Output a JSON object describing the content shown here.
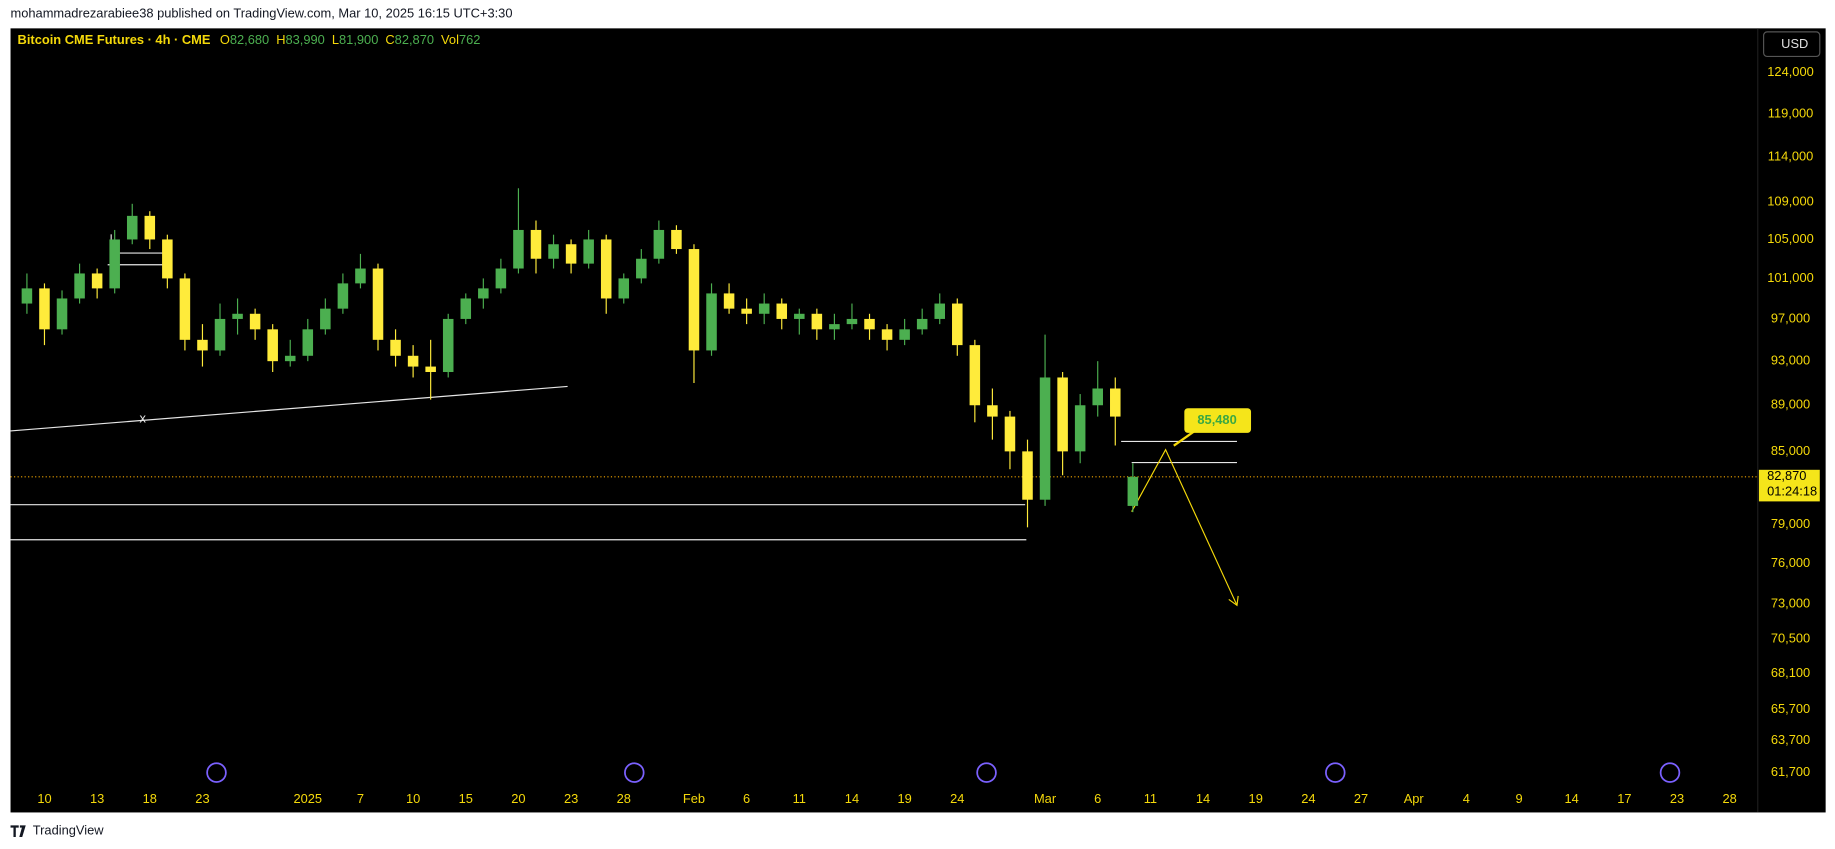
{
  "header": {
    "published": "mohammadrezarabiee38 published on TradingView.com, Mar 10, 2025 16:15 UTC+3:30"
  },
  "footer": {
    "brand": "TradingView"
  },
  "chart_data": {
    "type": "candlestick",
    "title": "Bitcoin CME Futures · 4h · CME",
    "ohlc_legend": [
      {
        "key": "O",
        "value": "82,680"
      },
      {
        "key": "H",
        "value": "83,990"
      },
      {
        "key": "L",
        "value": "81,900"
      },
      {
        "key": "C",
        "value": "82,870"
      },
      {
        "key": "Vol",
        "value": "762"
      }
    ],
    "currency": "USD",
    "log_scale": true,
    "grid": false,
    "up_color": "#4caf50",
    "down_color": "#ffeb3b",
    "categories": [
      null,
      "10",
      null,
      null,
      "13",
      null,
      null,
      "18",
      null,
      null,
      "23",
      null,
      null,
      null,
      null,
      null,
      "2025",
      null,
      null,
      "7",
      null,
      null,
      "10",
      null,
      null,
      "15",
      null,
      null,
      "20",
      null,
      null,
      "23",
      null,
      null,
      "28",
      null,
      null,
      null,
      "Feb",
      null,
      null,
      "6",
      null,
      null,
      "11",
      null,
      null,
      "14",
      null,
      null,
      "19",
      null,
      null,
      "24",
      null,
      null,
      null,
      null,
      "Mar",
      null,
      null,
      "6",
      null,
      null,
      "11",
      null,
      null,
      "14",
      null,
      null,
      "19",
      null,
      null,
      "24",
      null,
      null,
      "27",
      null,
      null,
      "Apr",
      null,
      null,
      "4",
      null,
      null,
      "9",
      null,
      null,
      "14",
      null,
      null,
      "17",
      null,
      null,
      "23",
      null,
      null,
      "28"
    ],
    "open": [
      98500,
      100000,
      96000,
      99000,
      101500,
      100000,
      105000,
      107500,
      105000,
      101000,
      95000,
      94000,
      97000,
      97500,
      96000,
      93000,
      93500,
      96000,
      98000,
      100500,
      102000,
      95000,
      93500,
      92500,
      92000,
      97000,
      99000,
      100000,
      102000,
      106000,
      103000,
      104500,
      102500,
      105000,
      99000,
      101000,
      103000,
      106000,
      104000,
      94000,
      99500,
      98000,
      97500,
      98500,
      97000,
      97500,
      96000,
      96500,
      97000,
      96000,
      95000,
      96000,
      97000,
      98500,
      94500,
      89000,
      88000,
      85000,
      81000,
      91500,
      85000,
      89000,
      90500,
      80500,
      null,
      null,
      null,
      null,
      null,
      null,
      null,
      null,
      null,
      null,
      null,
      null,
      null,
      null,
      null,
      null,
      null,
      null,
      null,
      null,
      null,
      null,
      null,
      null,
      null,
      null,
      null,
      null,
      null,
      null,
      null,
      null,
      null,
      null
    ],
    "high": [
      101500,
      100500,
      99800,
      102500,
      102000,
      106000,
      108800,
      108000,
      105500,
      101500,
      96500,
      98500,
      99000,
      98000,
      96500,
      95000,
      97000,
      99000,
      101500,
      103500,
      102500,
      96000,
      94500,
      95000,
      97500,
      99500,
      101000,
      103000,
      110500,
      107000,
      105500,
      105000,
      106000,
      105500,
      101500,
      104000,
      107000,
      106500,
      104500,
      100500,
      100500,
      99000,
      99500,
      99000,
      98000,
      98000,
      97500,
      98500,
      97500,
      96500,
      97000,
      98000,
      99500,
      99000,
      95000,
      90500,
      88500,
      86000,
      95500,
      92000,
      90000,
      93000,
      91500,
      84000,
      null,
      null,
      null,
      null,
      null,
      null,
      null,
      null,
      null,
      null,
      null,
      null,
      null,
      null,
      null,
      null,
      null,
      null,
      null,
      null,
      null,
      null,
      null,
      null,
      null,
      null,
      null,
      null,
      null,
      null,
      null,
      null,
      null,
      null
    ],
    "low": [
      97500,
      94500,
      95500,
      98500,
      99000,
      99500,
      104500,
      104000,
      100000,
      94000,
      92500,
      93500,
      95500,
      95000,
      92000,
      92500,
      93000,
      95500,
      97500,
      100000,
      94000,
      92500,
      91500,
      89500,
      91500,
      96500,
      98000,
      99500,
      101500,
      101500,
      102000,
      101500,
      102000,
      97500,
      98500,
      100500,
      102500,
      103500,
      91000,
      93500,
      97500,
      96500,
      96500,
      96000,
      95500,
      95000,
      95000,
      96000,
      95000,
      94000,
      94500,
      95500,
      96500,
      93500,
      87500,
      86000,
      83500,
      78800,
      80500,
      83000,
      84000,
      88000,
      85500,
      80000,
      null,
      null,
      null,
      null,
      null,
      null,
      null,
      null,
      null,
      null,
      null,
      null,
      null,
      null,
      null,
      null,
      null,
      null,
      null,
      null,
      null,
      null,
      null,
      null,
      null,
      null,
      null,
      null,
      null,
      null,
      null,
      null,
      null,
      null
    ],
    "close": [
      100000,
      96000,
      99000,
      101500,
      100000,
      105000,
      107500,
      105000,
      101000,
      95000,
      94000,
      97000,
      97500,
      96000,
      93000,
      93500,
      96000,
      98000,
      100500,
      102000,
      95000,
      93500,
      92500,
      92000,
      97000,
      99000,
      100000,
      102000,
      106000,
      103000,
      104500,
      102500,
      105000,
      99000,
      101000,
      103000,
      106000,
      104000,
      94000,
      99500,
      98000,
      97500,
      98500,
      97000,
      97500,
      96000,
      96500,
      97000,
      96000,
      95000,
      96000,
      97000,
      98500,
      94500,
      89000,
      88000,
      85000,
      81000,
      91500,
      85000,
      89000,
      90500,
      88000,
      82870,
      null,
      null,
      null,
      null,
      null,
      null,
      null,
      null,
      null,
      null,
      null,
      null,
      null,
      null,
      null,
      null,
      null,
      null,
      null,
      null,
      null,
      null,
      null,
      null,
      null,
      null,
      null,
      null,
      null,
      null,
      null,
      null,
      null,
      null
    ],
    "ylim": [
      59300,
      129600
    ],
    "yticks": [
      {
        "value": 124000,
        "label": "124,000"
      },
      {
        "value": 119000,
        "label": "119,000"
      },
      {
        "value": 114000,
        "label": "114,000"
      },
      {
        "value": 109000,
        "label": "109,000"
      },
      {
        "value": 105000,
        "label": "105,000"
      },
      {
        "value": 101000,
        "label": "101,000"
      },
      {
        "value": 97000,
        "label": "97,000"
      },
      {
        "value": 93000,
        "label": "93,000"
      },
      {
        "value": 89000,
        "label": "89,000"
      },
      {
        "value": 85000,
        "label": "85,000"
      },
      {
        "value": 79000,
        "label": "79,000"
      },
      {
        "value": 76000,
        "label": "76,000"
      },
      {
        "value": 73000,
        "label": "73,000"
      },
      {
        "value": 70500,
        "label": "70,500"
      },
      {
        "value": 68100,
        "label": "68,100"
      },
      {
        "value": 65700,
        "label": "65,700"
      },
      {
        "value": 63700,
        "label": "63,700"
      },
      {
        "value": 61700,
        "label": "61,700"
      }
    ],
    "last_price": {
      "value": 82870,
      "label": "82,870"
    },
    "countdown": "01:24:18",
    "annotation": {
      "value": 85480,
      "label": "85,480"
    },
    "drawing_marker": "x"
  }
}
